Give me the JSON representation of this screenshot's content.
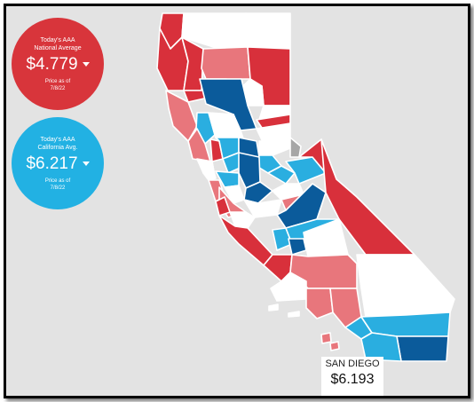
{
  "national": {
    "label_line1": "Today's AAA",
    "label_line2": "National Average",
    "value": "$4.779",
    "date_line1": "Price as of",
    "date_line2": "7/8/22"
  },
  "california": {
    "label_line1": "Today's AAA",
    "label_line2": "California Avg.",
    "value": "$6.217",
    "date_line1": "Price as of",
    "date_line2": "7/8/22"
  },
  "selected_county": {
    "name": "SAN DIEGO",
    "price": "$6.193"
  },
  "legend_colors": {
    "highest": "#d8303b",
    "high": "#e8767c",
    "mid": "#ffffff",
    "low": "#2aaee0",
    "lowest": "#0b5b9b",
    "no_data": "#a6a6a6"
  }
}
